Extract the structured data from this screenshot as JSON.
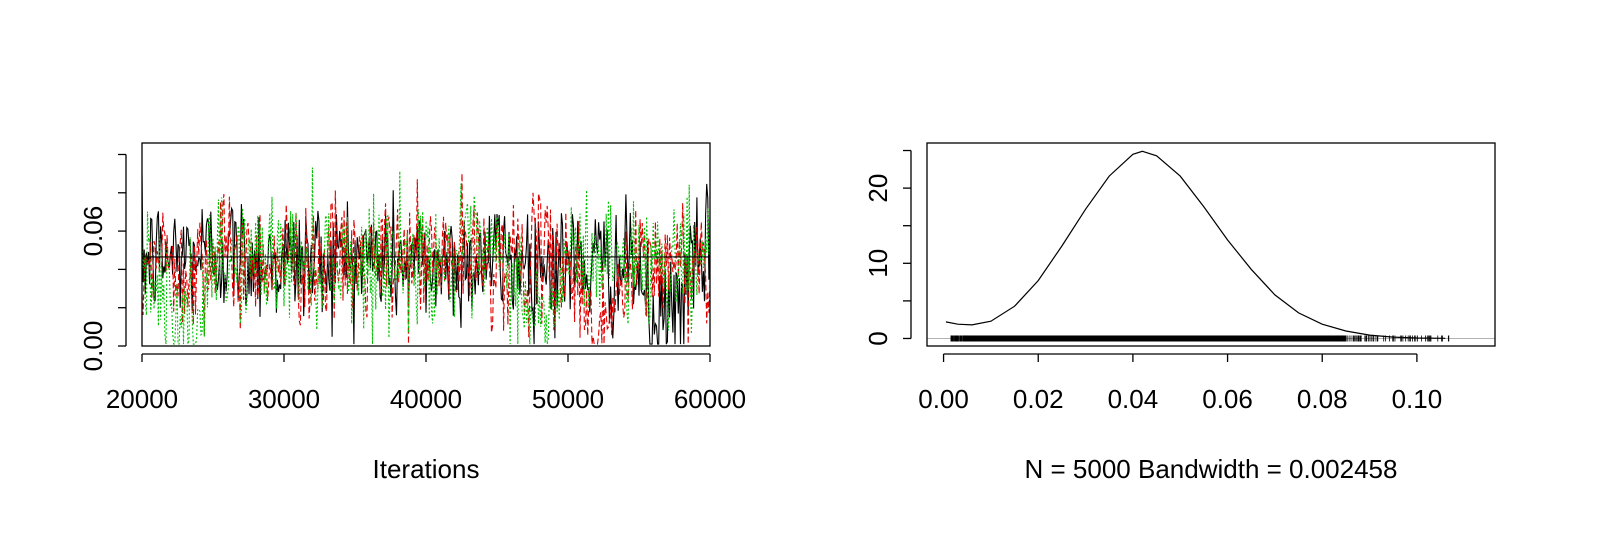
{
  "chart_data": [
    {
      "type": "line",
      "plot": "trace",
      "xlabel": "Iterations",
      "ylabel": "",
      "xlim": [
        20000,
        60000
      ],
      "ylim": [
        0.0,
        0.106
      ],
      "x_ticks": [
        20000,
        30000,
        40000,
        50000,
        60000
      ],
      "x_tick_labels": [
        "20000",
        "30000",
        "40000",
        "50000",
        "60000"
      ],
      "y_ticks": [
        0.0,
        0.02,
        0.04,
        0.06,
        0.08,
        0.1
      ],
      "y_tick_labels": [
        "0.00",
        "",
        "",
        "0.06",
        "",
        ""
      ],
      "series": [
        {
          "color": "#000000",
          "dash": "",
          "x": [
            20000,
            25000,
            30000,
            35000,
            40000,
            45000,
            50000,
            55000,
            56000,
            60000
          ],
          "y": [
            0.045,
            0.049,
            0.044,
            0.047,
            0.042,
            0.046,
            0.043,
            0.04,
            0.004,
            0.05
          ]
        },
        {
          "color": "#e00000",
          "dash": "6,3",
          "x": [
            20000,
            25000,
            30000,
            35000,
            40000,
            45000,
            50000,
            52000,
            55000,
            60000
          ],
          "y": [
            0.044,
            0.046,
            0.045,
            0.043,
            0.047,
            0.044,
            0.046,
            0.008,
            0.042,
            0.045
          ]
        },
        {
          "color": "#00c000",
          "dash": "2,2",
          "x": [
            20000,
            24000,
            25000,
            30000,
            35000,
            40000,
            45000,
            48500,
            50000,
            55000,
            60000
          ],
          "y": [
            0.046,
            0.002,
            0.045,
            0.046,
            0.044,
            0.045,
            0.046,
            0.008,
            0.047,
            0.045,
            0.046
          ]
        }
      ],
      "mean_line": {
        "y": 0.0465,
        "color": "#000000"
      }
    },
    {
      "type": "line",
      "plot": "density",
      "xlabel": "N = 5000   Bandwidth = 0.002458",
      "ylabel": "",
      "xlim": [
        -0.0035,
        0.1165
      ],
      "ylim": [
        -1.0,
        26.0
      ],
      "x_ticks": [
        0.0,
        0.02,
        0.04,
        0.06,
        0.08,
        0.1
      ],
      "x_tick_labels": [
        "0.00",
        "0.02",
        "0.04",
        "0.06",
        "0.08",
        "0.10"
      ],
      "y_ticks": [
        0,
        5,
        10,
        15,
        20,
        25
      ],
      "y_tick_labels": [
        "0",
        "",
        "10",
        "",
        "20",
        ""
      ],
      "series": [
        {
          "color": "#000000",
          "x": [
            0.0005,
            0.003,
            0.006,
            0.01,
            0.015,
            0.02,
            0.025,
            0.03,
            0.035,
            0.04,
            0.042,
            0.045,
            0.05,
            0.055,
            0.06,
            0.065,
            0.07,
            0.075,
            0.08,
            0.085,
            0.09,
            0.095,
            0.1,
            0.106
          ],
          "y": [
            2.2,
            1.9,
            1.8,
            2.3,
            4.3,
            7.7,
            12.3,
            17.2,
            21.6,
            24.5,
            24.9,
            24.3,
            21.6,
            17.5,
            13.1,
            9.2,
            5.8,
            3.4,
            1.9,
            1.0,
            0.45,
            0.18,
            0.07,
            0.02
          ]
        }
      ],
      "rug": {
        "from": 0.0015,
        "to": 0.107
      }
    }
  ]
}
